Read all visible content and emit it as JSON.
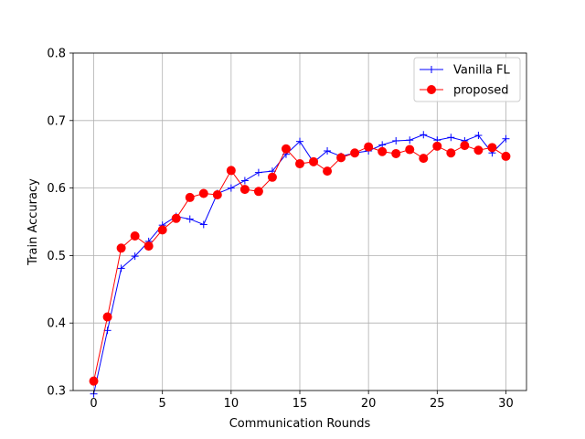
{
  "chart_data": {
    "type": "line",
    "title": "",
    "xlabel": "Communication Rounds",
    "ylabel": "Train Accuracy",
    "xlim": [
      -1.5,
      31.5
    ],
    "ylim": [
      0.3,
      0.8
    ],
    "xticks": [
      0,
      5,
      10,
      15,
      20,
      25,
      30
    ],
    "yticks": [
      0.3,
      0.4,
      0.5,
      0.6,
      0.7,
      0.8
    ],
    "grid": true,
    "legend_position": "top-right",
    "x": [
      0,
      1,
      2,
      3,
      4,
      5,
      6,
      7,
      8,
      9,
      10,
      11,
      12,
      13,
      14,
      15,
      16,
      17,
      18,
      19,
      20,
      21,
      22,
      23,
      24,
      25,
      26,
      27,
      28,
      29,
      30
    ],
    "series": [
      {
        "name": "Vanilla FL",
        "color": "#0000ff",
        "marker": "plus",
        "values": [
          0.295,
          0.389,
          0.481,
          0.499,
          0.521,
          0.545,
          0.558,
          0.554,
          0.546,
          0.592,
          0.6,
          0.611,
          0.623,
          0.625,
          0.65,
          0.669,
          0.638,
          0.655,
          0.647,
          0.652,
          0.655,
          0.664,
          0.67,
          0.671,
          0.679,
          0.671,
          0.675,
          0.67,
          0.678,
          0.652,
          0.673
        ]
      },
      {
        "name": "proposed",
        "color": "#ff0000",
        "marker": "circle",
        "values": [
          0.314,
          0.409,
          0.511,
          0.529,
          0.514,
          0.538,
          0.555,
          0.586,
          0.592,
          0.59,
          0.626,
          0.598,
          0.595,
          0.616,
          0.658,
          0.636,
          0.639,
          0.625,
          0.645,
          0.652,
          0.661,
          0.654,
          0.651,
          0.657,
          0.644,
          0.662,
          0.652,
          0.663,
          0.656,
          0.66,
          0.647
        ]
      }
    ]
  }
}
